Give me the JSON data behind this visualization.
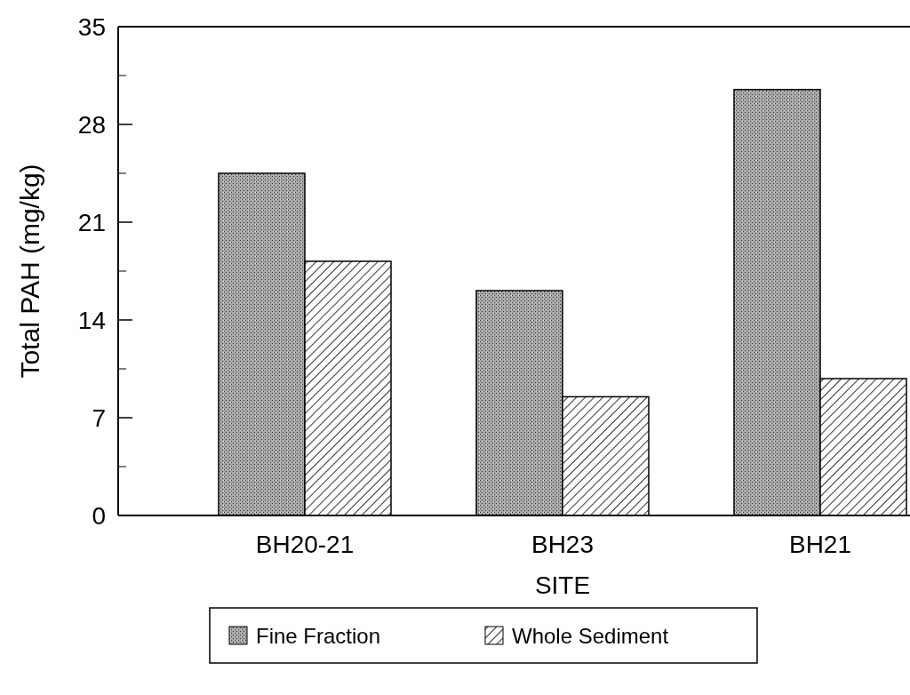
{
  "chart_data": {
    "type": "bar",
    "xlabel": "SITE",
    "ylabel": "Total PAH (mg/kg)",
    "categories": [
      "BH20-21",
      "BH23",
      "BH21"
    ],
    "series": [
      {
        "name": "Fine Fraction",
        "color": "#a8a8a8",
        "values": [
          24.5,
          16.1,
          30.5
        ]
      },
      {
        "name": "Whole Sediment",
        "color": "#000000",
        "values": [
          18.2,
          8.5,
          9.8
        ]
      }
    ],
    "ylim": [
      0,
      35
    ],
    "yticks": [
      0,
      7,
      14,
      21,
      28,
      35
    ],
    "grid": false,
    "legend": "bottom"
  }
}
